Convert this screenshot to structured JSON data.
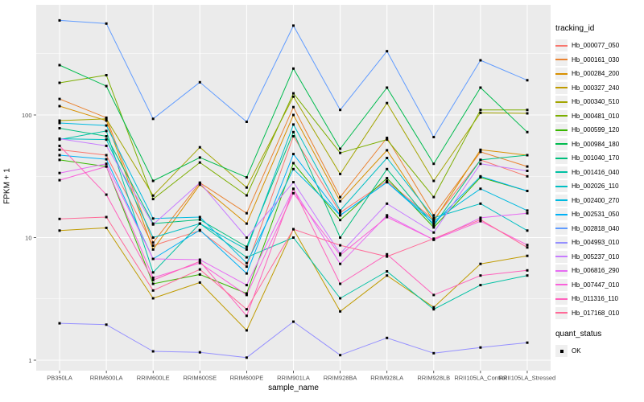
{
  "figure": {
    "x_axis_title": "sample_name",
    "y_axis_title": "FPKM + 1"
  },
  "legend": {
    "tracking_title": "tracking_id",
    "quant_title": "quant_status",
    "quant_items": [
      {
        "label": "OK",
        "marker": "black-square"
      }
    ]
  },
  "chart_data": {
    "type": "line",
    "x_scale": "categorical",
    "y_scale": "log10",
    "ylim": [
      1,
      600
    ],
    "grid": "white-on-grey-panel",
    "panel_bg": "#EBEBEB",
    "grid_color": "#FFFFFF",
    "marker": "black-square",
    "legend_position": "right",
    "xlabel": "sample_name",
    "ylabel": "FPKM + 1",
    "y_ticks": [
      {
        "label": "100",
        "value": 100
      },
      {
        "label": "10",
        "value": 10
      },
      {
        "label": "1",
        "value": 1
      }
    ],
    "minor_breaks": [
      3.162,
      31.62,
      316.2
    ],
    "categories": [
      "PB350LA",
      "RRIM600LA",
      "RRIM600LE",
      "RRIM600SE",
      "RRIM600PE",
      "RRIM901LA",
      "RRIM928BA",
      "RRIM928LA",
      "RRIM928LB",
      "RRII105LA_Control",
      "RRII105LA_Stressed"
    ],
    "series": [
      {
        "name": "Hb_000077_050",
        "color": "#F8766D",
        "values": [
          52,
          47,
          8.6,
          11.4,
          5.8,
          67,
          16,
          29,
          14,
          43,
          31.6
        ]
      },
      {
        "name": "Hb_000161_030",
        "color": "#EA8331",
        "values": [
          135,
          95,
          9.1,
          28,
          15.8,
          116,
          21.4,
          65,
          15.2,
          50,
          38
        ]
      },
      {
        "name": "Hb_000284_200",
        "color": "#D89000",
        "values": [
          118,
          90,
          8.0,
          27,
          13,
          100,
          19.8,
          51.5,
          13.6,
          52,
          47
        ]
      },
      {
        "name": "Hb_000327_240",
        "color": "#C09B00",
        "values": [
          11.4,
          12,
          3.2,
          4.3,
          1.75,
          11.7,
          2.5,
          4.9,
          2.7,
          6.1,
          7.1
        ]
      },
      {
        "name": "Hb_000340_510",
        "color": "#A3A500",
        "values": [
          90,
          93,
          22,
          54.5,
          25.6,
          141,
          33,
          125,
          29,
          104,
          103
        ]
      },
      {
        "name": "Hb_000481_010",
        "color": "#7CAE00",
        "values": [
          183,
          211,
          20.6,
          41,
          22.1,
          150,
          49,
          63,
          21.4,
          110,
          110
        ]
      },
      {
        "name": "Hb_000599_120",
        "color": "#39B600",
        "values": [
          43,
          38,
          4.2,
          5.0,
          3.5,
          40.5,
          13.9,
          30.5,
          12.1,
          31,
          24
        ]
      },
      {
        "name": "Hb_000984_180",
        "color": "#00BB4E",
        "values": [
          255,
          172,
          29,
          45,
          31,
          239,
          53,
          167,
          40,
          167,
          72.5
        ]
      },
      {
        "name": "Hb_001040_170",
        "color": "#00BF7D",
        "values": [
          78,
          67,
          13.0,
          14,
          8.4,
          72.5,
          10.0,
          36.2,
          12.5,
          43,
          47
        ]
      },
      {
        "name": "Hb_001416_040",
        "color": "#00C1A3",
        "values": [
          63,
          74,
          5.2,
          13.0,
          6.9,
          10.0,
          3.2,
          5.3,
          2.6,
          4.1,
          4.9
        ]
      },
      {
        "name": "Hb_002026_110",
        "color": "#00BFC4",
        "values": [
          64,
          63,
          10.0,
          13,
          8.0,
          83.5,
          16.6,
          44.6,
          14.5,
          18.9,
          11.4
        ]
      },
      {
        "name": "Hb_002400_270",
        "color": "#00BAE0",
        "values": [
          86,
          82,
          14.3,
          14.7,
          6.2,
          36.2,
          15.2,
          28.3,
          13.6,
          25,
          16.6
        ]
      },
      {
        "name": "Hb_002531_050",
        "color": "#00B0F6",
        "values": [
          47,
          43.5,
          6.7,
          11.5,
          5.1,
          48,
          15.2,
          28.3,
          13,
          31.6,
          24
        ]
      },
      {
        "name": "Hb_002818_040",
        "color": "#619CFF",
        "values": [
          590,
          557,
          93,
          185,
          88,
          535,
          110,
          331,
          66,
          279,
          192
        ]
      },
      {
        "name": "Hb_004993_010",
        "color": "#9590FF",
        "values": [
          2.0,
          1.95,
          1.18,
          1.16,
          1.05,
          2.06,
          1.1,
          1.52,
          1.14,
          1.27,
          1.39
        ]
      },
      {
        "name": "Hb_005237_010",
        "color": "#C77CFF",
        "values": [
          64,
          56,
          12.8,
          28,
          10,
          28.3,
          7.4,
          18.9,
          11,
          40,
          35
        ]
      },
      {
        "name": "Hb_006816_290",
        "color": "#E76BF3",
        "values": [
          33.6,
          40,
          6.7,
          6.6,
          4.1,
          24.9,
          6.1,
          15.2,
          9.6,
          14.5,
          15.8
        ]
      },
      {
        "name": "Hb_007447_010",
        "color": "#FA62DB",
        "values": [
          29.4,
          38,
          4.7,
          6.2,
          3.4,
          23,
          7.2,
          14.7,
          9.6,
          13.6,
          8.7
        ]
      },
      {
        "name": "Hb_011316_110",
        "color": "#FF62BC",
        "values": [
          56,
          22.4,
          4.5,
          6.4,
          2.3,
          25,
          4.2,
          7.3,
          3.4,
          4.9,
          5.4
        ]
      },
      {
        "name": "Hb_017168_010",
        "color": "#FF6A98",
        "values": [
          14.2,
          14.7,
          3.7,
          5.5,
          2.6,
          11.7,
          8.65,
          7.0,
          9.8,
          14,
          8.3
        ]
      }
    ]
  }
}
